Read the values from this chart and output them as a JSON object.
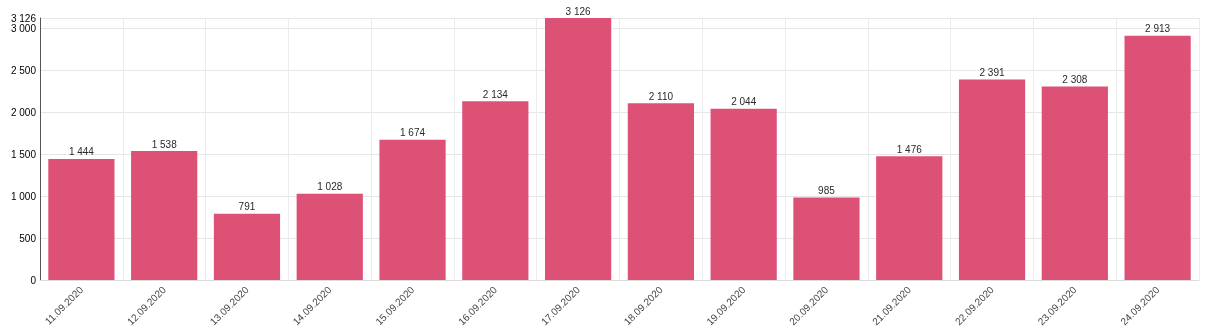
{
  "chart_data": {
    "type": "bar",
    "categories": [
      "11.09.2020",
      "12.09.2020",
      "13.09.2020",
      "14.09.2020",
      "15.09.2020",
      "16.09.2020",
      "17.09.2020",
      "18.09.2020",
      "19.09.2020",
      "20.09.2020",
      "21.09.2020",
      "22.09.2020",
      "23.09.2020",
      "24.09.2020"
    ],
    "values": [
      1444,
      1538,
      791,
      1028,
      1674,
      2134,
      3126,
      2110,
      2044,
      985,
      1476,
      2391,
      2308,
      2913
    ],
    "value_labels": [
      "1 444",
      "1 538",
      "791",
      "1 028",
      "1 674",
      "2 134",
      "3 126",
      "2 110",
      "2 044",
      "985",
      "1 476",
      "2 391",
      "2 308",
      "2 913"
    ],
    "color": "#dd4b73",
    "ylim": [
      0,
      3126
    ],
    "yticks": [
      0,
      500,
      {
        "value": 1000,
        "label": "1 000"
      },
      {
        "value": 1500,
        "label": "1 500"
      },
      {
        "value": 2000,
        "label": "2 000"
      },
      {
        "value": 2500,
        "label": "2 500"
      },
      {
        "value": 3000,
        "label": "3 000"
      },
      {
        "value": 3126,
        "label": "3 126"
      }
    ],
    "grid": true
  }
}
